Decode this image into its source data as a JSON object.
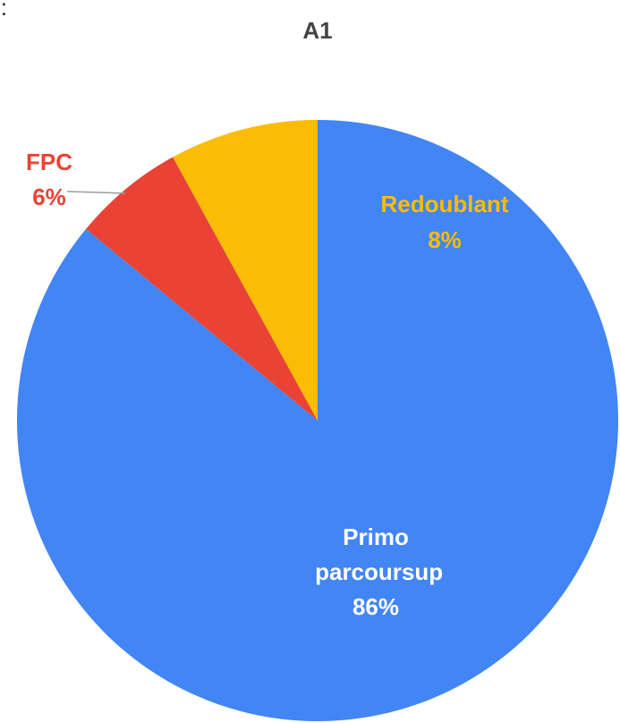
{
  "annotation": "e :",
  "chart_data": {
    "type": "pie",
    "title": "A1",
    "categories": [
      "Primo parcoursup",
      "FPC",
      "Redoublant"
    ],
    "values": [
      86,
      6,
      8
    ],
    "value_labels": [
      "86%",
      "6%",
      "8%"
    ],
    "colors": [
      "#4285f4",
      "#ea4335",
      "#fbbc04"
    ],
    "label_colors": [
      "#ffffff",
      "#ea4335",
      "#fbbc04"
    ]
  }
}
